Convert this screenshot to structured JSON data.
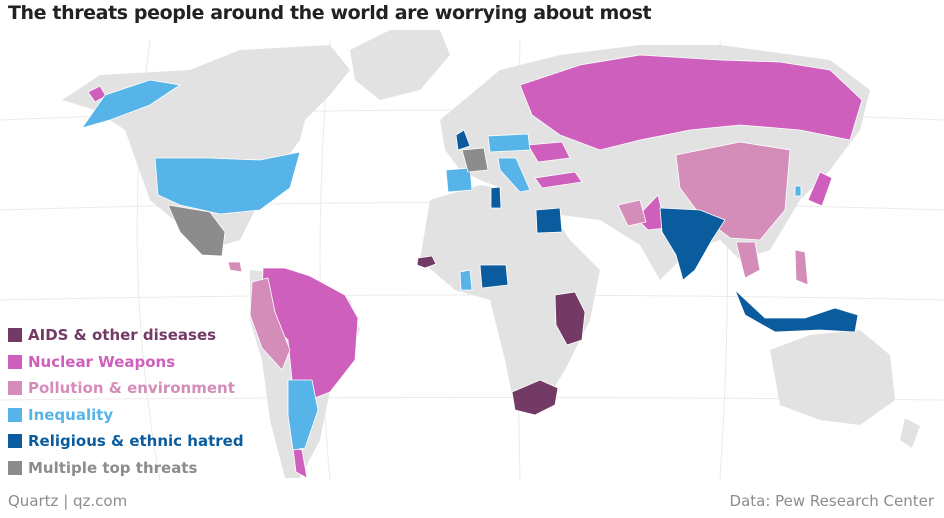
{
  "title": "The threats people around the world are worrying about most",
  "legend": [
    {
      "label": "AIDS & other diseases",
      "color": "#733a66"
    },
    {
      "label": "Nuclear Weapons",
      "color": "#cf5fbd"
    },
    {
      "label": "Pollution & environment",
      "color": "#d48cb8"
    },
    {
      "label": "Inequality",
      "color": "#56b4e8"
    },
    {
      "label": "Religious & ethnic hatred",
      "color": "#0b5c9e"
    },
    {
      "label": "Multiple top threats",
      "color": "#8c8c8c"
    }
  ],
  "base_land_color": "#e2e2e2",
  "footer": {
    "source_left": "Quartz | qz.com",
    "source_right": "Data: Pew Research Center"
  }
}
